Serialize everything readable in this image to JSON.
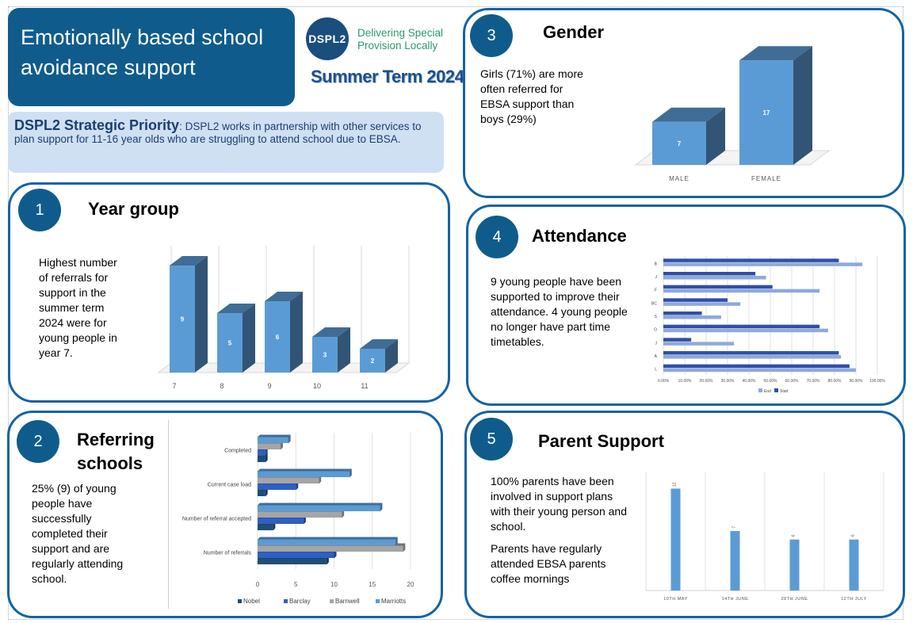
{
  "header": {
    "title_line1": "Emotionally based school",
    "title_line2": "avoidance support",
    "logo_mark": "DSPL2",
    "logo_line1": "Delivering Special",
    "logo_line2": "Provision Locally",
    "term": "Summer Term 2024"
  },
  "priority": {
    "heading": "DSPL2 Strategic Priority",
    "text": ": DSPL2 works in partnership with other services to plan support for 11-16 year olds who are struggling to attend school due to EBSA."
  },
  "panels": {
    "year": {
      "num": "1",
      "title": "Year group",
      "text": "Highest number of referrals for support in the summer term 2024 were for young people in year 7."
    },
    "schools": {
      "num": "2",
      "title_line1": "Referring",
      "title_line2": "schools",
      "text": "25% (9) of young people have successfully completed their support and are regularly attending school."
    },
    "gender": {
      "num": "3",
      "title": "Gender",
      "text": "Girls (71%) are more often referred for EBSA support than boys (29%)"
    },
    "attendance": {
      "num": "4",
      "title": "Attendance",
      "text": "9 young people have been supported to improve their attendance. 4 young people no longer have part time timetables."
    },
    "parent": {
      "num": "5",
      "title": "Parent Support",
      "text1": "100% parents have been involved in support plans with their young person and school.",
      "text2": "Parents have regularly attended EBSA parents coffee mornings"
    }
  },
  "chart_data": [
    {
      "id": "year",
      "type": "bar",
      "categories": [
        "7",
        "8",
        "9",
        "10",
        "11"
      ],
      "values": [
        9,
        5,
        6,
        3,
        2
      ],
      "ylim": [
        0,
        10
      ],
      "grid": true,
      "color": "#5b9bd5"
    },
    {
      "id": "gender",
      "type": "bar",
      "categories": [
        "MALE",
        "FEMALE"
      ],
      "values": [
        7,
        17
      ],
      "ylim": [
        0,
        20
      ],
      "color": "#5b9bd5"
    },
    {
      "id": "schools",
      "type": "bar",
      "orientation": "horizontal",
      "categories": [
        "Number of referrals",
        "Number of referral accepted",
        "Current case load",
        "Completed"
      ],
      "series": [
        {
          "name": "Nobel",
          "values": [
            9,
            2,
            1,
            1
          ],
          "color": "#1f4e79"
        },
        {
          "name": "Barclay",
          "values": [
            10,
            6,
            5,
            1
          ],
          "color": "#2f5fc4"
        },
        {
          "name": "Barnwell",
          "values": [
            19,
            11,
            8,
            3
          ],
          "color": "#a5a5a5"
        },
        {
          "name": "Marriotts",
          "values": [
            18,
            16,
            12,
            4
          ],
          "color": "#5b9bd5"
        }
      ],
      "xticks": [
        "0",
        "5",
        "10",
        "15",
        "20"
      ],
      "xlim": [
        0,
        20
      ],
      "legend": "bottom"
    },
    {
      "id": "attendance",
      "type": "bar",
      "orientation": "horizontal",
      "categories": [
        "L",
        "A",
        "J",
        "O",
        "S",
        "BC",
        "F",
        "J",
        "B"
      ],
      "series": [
        {
          "name": "End",
          "values": [
            0.9,
            0.83,
            0.33,
            0.77,
            0.27,
            0.36,
            0.73,
            0.48,
            0.93
          ],
          "color": "#8ea9db"
        },
        {
          "name": "Start",
          "values": [
            0.87,
            0.82,
            0.13,
            0.73,
            0.18,
            0.3,
            0.51,
            0.43,
            0.82
          ],
          "color": "#2f4fa8"
        }
      ],
      "xticks": [
        "0.00%",
        "10.00%",
        "20.00%",
        "30.00%",
        "40.00%",
        "50.00%",
        "60.00%",
        "70.00%",
        "80.00%",
        "90.00%",
        "100.00%"
      ],
      "xlim": [
        0,
        1
      ],
      "legend": "bottom"
    },
    {
      "id": "parent",
      "type": "bar",
      "categories": [
        "10TH MAY",
        "14TH JUNE",
        "28TH JUNE",
        "12TH JULY"
      ],
      "values": [
        12,
        7,
        6,
        6
      ],
      "ylim": [
        0,
        14
      ],
      "color": "#5b9bd5"
    }
  ]
}
